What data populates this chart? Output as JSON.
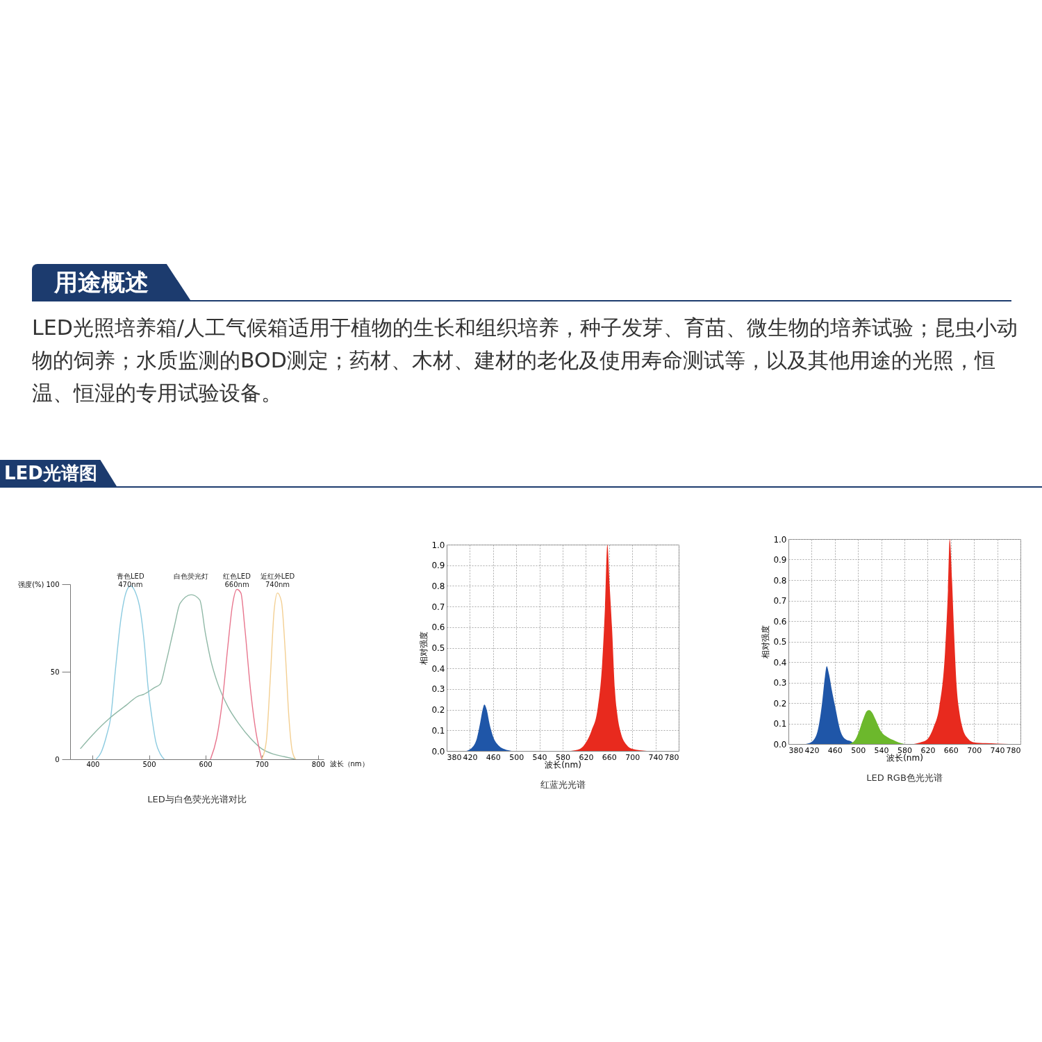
{
  "chart_data": [
    {
      "type": "line",
      "title": "LED与白色荧光光谱对比",
      "xlabel": "波长（nm）",
      "ylabel": "强度(%)",
      "annotations": [
        "用途概述",
        "LED光照培养箱/人工气候箱适用于植物的生长和组织培养，种子发芽、育苗、微生物的培养试验；昆虫小动物的饲养；水质监测的BOD测定；药材、木材、建材的老化及使用寿命测试等，以及其他用途的光照，恒温、恒湿的专用试验设备。",
        "LED光谱图"
      ],
      "xlim": [
        360,
        810
      ],
      "ylim": [
        0,
        100
      ],
      "xticks": [
        400,
        500,
        600,
        700,
        800
      ],
      "yticks": [
        0,
        50,
        100
      ],
      "grid": false,
      "legend": false,
      "series": [
        {
          "name": "青色LED\n470nm",
          "color": "#8ccbe0",
          "x": [
            406,
            415,
            425,
            432,
            440,
            450,
            460,
            467,
            475,
            485,
            492,
            498,
            505,
            512,
            520,
            527
          ],
          "values": [
            0,
            4,
            14,
            24,
            50,
            80,
            96,
            99,
            96,
            84,
            65,
            42,
            24,
            10,
            3,
            0
          ]
        },
        {
          "name": "白色荧光灯",
          "color": "#8fb8a6",
          "x": [
            378,
            400,
            432,
            460,
            480,
            490,
            510,
            520,
            530,
            545,
            555,
            575,
            590,
            600,
            610,
            620,
            640,
            660,
            680,
            700,
            720,
            740,
            760
          ],
          "values": [
            6,
            14,
            24,
            31,
            36,
            37,
            41,
            43,
            55,
            76,
            89,
            94,
            91,
            72,
            56,
            45,
            30,
            20,
            12,
            6,
            3,
            1.5,
            0
          ]
        },
        {
          "name": "红色LED\n660nm",
          "color": "#e8768e",
          "x": [
            609,
            620,
            630,
            640,
            648,
            656,
            663,
            670,
            680,
            690,
            697,
            700
          ],
          "values": [
            0,
            12,
            33,
            65,
            88,
            97,
            95,
            75,
            40,
            15,
            4,
            0
          ]
        },
        {
          "name": "近红外LED\n740nm",
          "color": "#f3cf92",
          "x": [
            700,
            708,
            715,
            722,
            728,
            735,
            742,
            748,
            754,
            760
          ],
          "values": [
            0,
            10,
            45,
            85,
            95,
            90,
            60,
            25,
            5,
            0
          ]
        }
      ]
    },
    {
      "type": "area",
      "title": "红蓝光光谱",
      "xlabel": "波长(nm)",
      "ylabel": "相对强度",
      "xlim": [
        380,
        780
      ],
      "ylim": [
        0,
        1
      ],
      "xticks": [
        380,
        420,
        460,
        500,
        540,
        580,
        620,
        660,
        700,
        740,
        780
      ],
      "yticks": [
        {
          "value": 0,
          "label": "0.0"
        },
        {
          "value": 0.1,
          "label": "0.1"
        },
        {
          "value": 0.2,
          "label": "0.2"
        },
        {
          "value": 0.3,
          "label": "0.3"
        },
        {
          "value": 0.4,
          "label": "0.4"
        },
        {
          "value": 0.5,
          "label": "0.5"
        },
        {
          "value": 0.6,
          "label": "0.6"
        },
        {
          "value": 0.7,
          "label": "0.7"
        },
        {
          "value": 0.8,
          "label": "0.8"
        },
        {
          "value": 0.9,
          "label": "0.9"
        },
        {
          "value": 1,
          "label": "1.0"
        }
      ],
      "grid": true,
      "legend": false,
      "series": [
        {
          "color": "#1f56a8",
          "x": [
            414,
            425,
            432,
            438,
            442,
            445,
            449,
            454,
            460,
            470,
            480,
            492
          ],
          "values": [
            0,
            0.02,
            0.06,
            0.14,
            0.2,
            0.225,
            0.2,
            0.13,
            0.07,
            0.025,
            0.008,
            0
          ]
        },
        {
          "color": "#e82a1e",
          "x": [
            594,
            610,
            620,
            630,
            640,
            648,
            653,
            657,
            661,
            665,
            670,
            675,
            680,
            690,
            700,
            725
          ],
          "values": [
            0,
            0.01,
            0.04,
            0.1,
            0.2,
            0.42,
            0.7,
            1,
            0.8,
            0.6,
            0.3,
            0.16,
            0.09,
            0.03,
            0.01,
            0
          ]
        }
      ]
    },
    {
      "type": "area",
      "title": "LED RGB色光光谱",
      "xlabel": "波长(nm)",
      "ylabel": "相对强度",
      "xlim": [
        380,
        780
      ],
      "ylim": [
        0,
        1
      ],
      "xticks": [
        380,
        420,
        460,
        500,
        540,
        580,
        620,
        660,
        700,
        740,
        780
      ],
      "yticks": [
        {
          "value": 0,
          "label": "0.0"
        },
        {
          "value": 0.1,
          "label": "0.1"
        },
        {
          "value": 0.2,
          "label": "0.2"
        },
        {
          "value": 0.3,
          "label": "0.3"
        },
        {
          "value": 0.4,
          "label": "0.4"
        },
        {
          "value": 0.5,
          "label": "0.5"
        },
        {
          "value": 0.6,
          "label": "0.6"
        },
        {
          "value": 0.7,
          "label": "0.7"
        },
        {
          "value": 0.8,
          "label": "0.8"
        },
        {
          "value": 0.9,
          "label": "0.9"
        },
        {
          "value": 1,
          "label": "1.0"
        }
      ],
      "grid": true,
      "legend": false,
      "series": [
        {
          "color": "#1f56a8",
          "x": [
            410,
            420,
            430,
            438,
            443,
            446,
            450,
            455,
            460,
            470,
            480,
            488,
            494
          ],
          "values": [
            0,
            0.01,
            0.06,
            0.2,
            0.33,
            0.38,
            0.34,
            0.26,
            0.19,
            0.06,
            0.02,
            0.013,
            0
          ]
        },
        {
          "color": "#6cb82c",
          "x": [
            485,
            495,
            500,
            510,
            515,
            519,
            525,
            530,
            540,
            550,
            560,
            570,
            580
          ],
          "values": [
            0,
            0.02,
            0.05,
            0.13,
            0.16,
            0.165,
            0.15,
            0.12,
            0.06,
            0.035,
            0.02,
            0.008,
            0
          ]
        },
        {
          "color": "#e82a1e",
          "x": [
            596,
            610,
            620,
            630,
            640,
            650,
            655,
            658,
            662,
            665,
            670,
            675,
            680,
            690,
            700,
            720,
            740,
            760
          ],
          "values": [
            0,
            0.01,
            0.025,
            0.08,
            0.18,
            0.45,
            0.75,
            1,
            0.8,
            0.58,
            0.28,
            0.15,
            0.08,
            0.025,
            0.008,
            0.004,
            0.002,
            0
          ]
        }
      ]
    }
  ]
}
